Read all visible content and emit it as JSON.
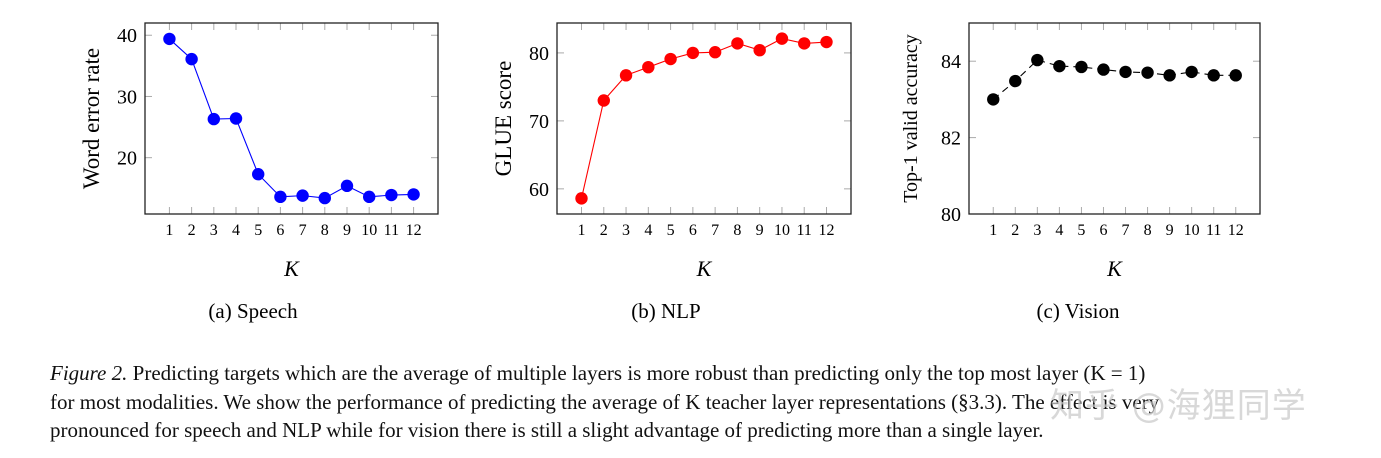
{
  "chart_data": [
    {
      "type": "line",
      "subcaption": "(a) Speech",
      "xlabel": "K",
      "ylabel": "Word error rate",
      "x": [
        1,
        2,
        3,
        4,
        5,
        6,
        7,
        8,
        9,
        10,
        11,
        12
      ],
      "series": [
        {
          "values": [
            39.4,
            36.1,
            26.3,
            26.4,
            17.3,
            13.6,
            13.8,
            13.4,
            15.4,
            13.6,
            13.9,
            14.0
          ],
          "color": "#0000ff",
          "line": "solid"
        }
      ],
      "yticks": [
        20,
        30,
        40
      ],
      "ylim": [
        10.8,
        42
      ],
      "xlim": [
        -0.1,
        13.1
      ],
      "grid": false
    },
    {
      "type": "line",
      "subcaption": "(b) NLP",
      "xlabel": "K",
      "ylabel": "GLUE score",
      "x": [
        1,
        2,
        3,
        4,
        5,
        6,
        7,
        8,
        9,
        10,
        11,
        12
      ],
      "series": [
        {
          "values": [
            58.6,
            73.0,
            76.7,
            77.9,
            79.1,
            80.0,
            80.1,
            81.4,
            80.4,
            82.1,
            81.4,
            81.6
          ],
          "color": "#ff0000",
          "line": "solid"
        }
      ],
      "yticks": [
        60,
        70,
        80
      ],
      "ylim": [
        56.3,
        84.4
      ],
      "xlim": [
        -0.1,
        13.1
      ],
      "grid": false
    },
    {
      "type": "line",
      "subcaption": "(c) Vision",
      "xlabel": "K",
      "ylabel": "Top-1 valid accuracy",
      "x": [
        1,
        2,
        3,
        4,
        5,
        6,
        7,
        8,
        9,
        10,
        11,
        12
      ],
      "series": [
        {
          "values": [
            83.0,
            83.48,
            84.03,
            83.87,
            83.85,
            83.78,
            83.72,
            83.7,
            83.63,
            83.72,
            83.63,
            83.63
          ],
          "color": "#000000",
          "line": "dashed"
        }
      ],
      "yticks": [
        80,
        82,
        84
      ],
      "ylim": [
        80,
        85
      ],
      "xlim": [
        -0.1,
        13.1
      ],
      "grid": false
    }
  ],
  "caption": {
    "label": "Figure 2.",
    "line1": "Predicting targets which are the average of multiple layers is more robust than predicting only the top most layer (K = 1)",
    "line2": "for most modalities. We show the performance of predicting the average of K teacher layer representations (§3.3). The effect is very",
    "line3": "pronounced for speech and NLP while for vision there is still a slight advantage of predicting more than a single layer."
  },
  "watermark": "知乎 @海狸同学"
}
